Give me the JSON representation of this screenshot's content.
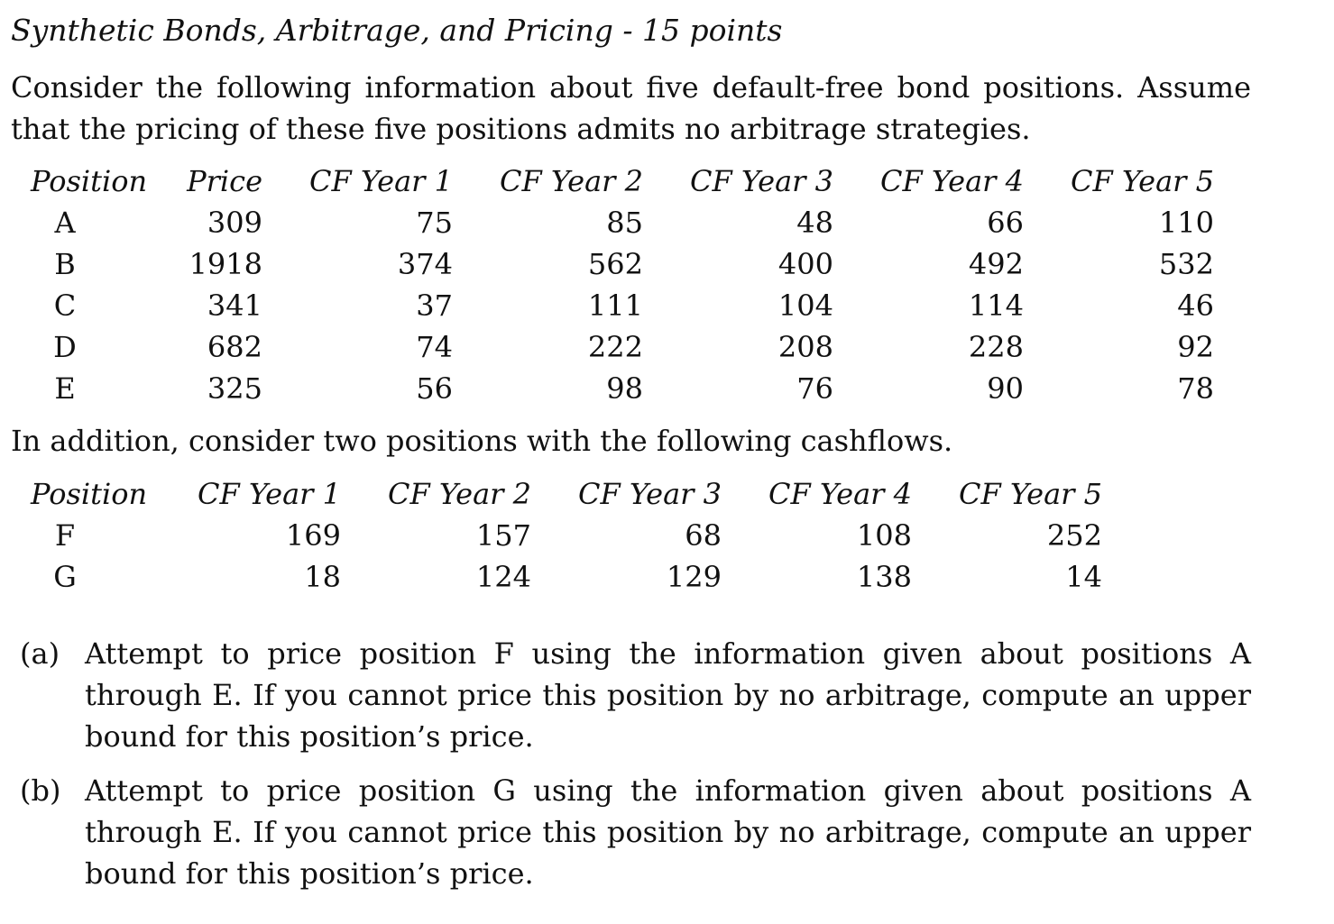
{
  "title": "Synthetic Bonds, Arbitrage, and Pricing - 15 points",
  "intro": "Consider the following information about five default-free bond positions. Assume that the pricing of these five positions admits no arbitrage strategies.",
  "table1": {
    "headers": [
      "Position",
      "Price",
      "CF Year 1",
      "CF Year 2",
      "CF Year 3",
      "CF Year 4",
      "CF Year 5"
    ],
    "rows": [
      [
        "A",
        "309",
        "75",
        "85",
        "48",
        "66",
        "110"
      ],
      [
        "B",
        "1918",
        "374",
        "562",
        "400",
        "492",
        "532"
      ],
      [
        "C",
        "341",
        "37",
        "111",
        "104",
        "114",
        "46"
      ],
      [
        "D",
        "682",
        "74",
        "222",
        "208",
        "228",
        "92"
      ],
      [
        "E",
        "325",
        "56",
        "98",
        "76",
        "90",
        "78"
      ]
    ]
  },
  "transition": "In addition, consider two positions with the following cashflows.",
  "table2": {
    "headers": [
      "Position",
      "CF Year 1",
      "CF Year 2",
      "CF Year 3",
      "CF Year 4",
      "CF Year 5"
    ],
    "rows": [
      [
        "F",
        "169",
        "157",
        "68",
        "108",
        "252"
      ],
      [
        "G",
        "18",
        "124",
        "129",
        "138",
        "14"
      ]
    ]
  },
  "questions": [
    {
      "label": "(a)",
      "text": "Attempt to price position F using the information given about positions A through E. If you cannot price this position by no arbitrage, compute an up­per bound for this position’s price."
    },
    {
      "label": "(b)",
      "text": "Attempt to price position G using the information given about positions A through E. If you cannot price this position by no arbitrage, compute an up­per bound for this position’s price."
    }
  ]
}
